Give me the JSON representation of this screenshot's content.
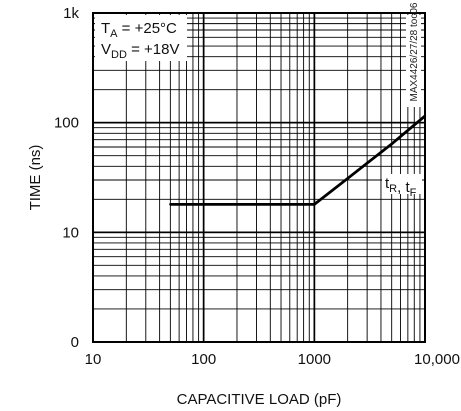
{
  "chart_data": {
    "type": "line",
    "x_scale": "log",
    "y_scale": "log",
    "xlim": [
      10,
      10000
    ],
    "ylim": [
      1,
      1000
    ],
    "x_tick_labels": [
      "10",
      "100",
      "1000",
      "10,000"
    ],
    "y_tick_labels": [
      "0",
      "10",
      "100",
      "1k"
    ],
    "xlabel": "CAPACITIVE LOAD (pF)",
    "ylabel": "TIME (ns)",
    "grid": true,
    "conditions": [
      {
        "main": "T",
        "sub": "A",
        "rest": " = +25°C"
      },
      {
        "main": "V",
        "sub": "DD",
        "rest": " = +18V"
      }
    ],
    "graph_code": "MAX4426/27/28 toc06",
    "series": [
      {
        "label_parts": [
          {
            "main": "t",
            "sub": "R"
          },
          {
            "sep": ", "
          },
          {
            "main": "t",
            "sub": "F"
          }
        ],
        "color": "#000000",
        "points": [
          {
            "x": 50,
            "y": 18
          },
          {
            "x": 100,
            "y": 18
          },
          {
            "x": 500,
            "y": 18
          },
          {
            "x": 1000,
            "y": 18
          },
          {
            "x": 2000,
            "y": 31
          },
          {
            "x": 5000,
            "y": 64
          },
          {
            "x": 10000,
            "y": 115
          }
        ]
      }
    ]
  }
}
